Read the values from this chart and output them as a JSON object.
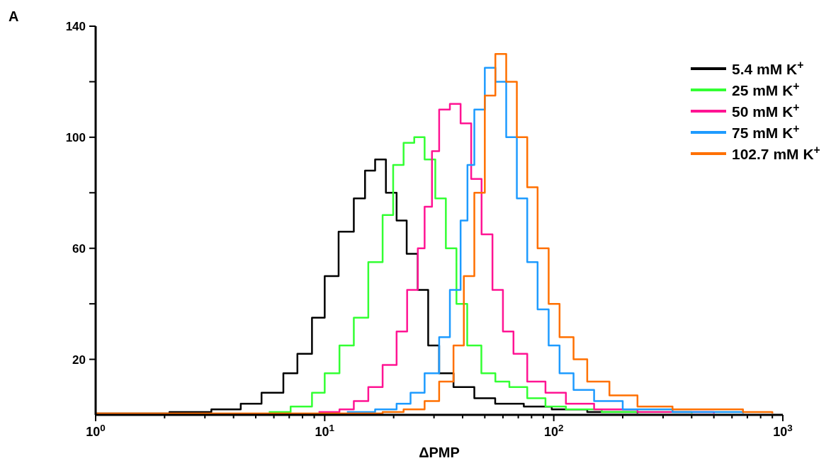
{
  "chart_data": {
    "type": "step",
    "title": "A",
    "xlabel": "ΔPMP",
    "log": "x",
    "legend": "top right",
    "grid": false,
    "xlim": [
      1,
      1000
    ],
    "xticks": [
      {
        "value": 1,
        "label": "10$^{0}$"
      },
      {
        "value": 2,
        "label": null
      },
      {
        "value": 3,
        "label": null
      },
      {
        "value": 4,
        "label": null
      },
      {
        "value": 5,
        "label": null
      },
      {
        "value": 6,
        "label": null
      },
      {
        "value": 7,
        "label": null
      },
      {
        "value": 8,
        "label": null
      },
      {
        "value": 9,
        "label": null
      },
      {
        "value": 10,
        "label": "10$^{1}$"
      },
      {
        "value": 20,
        "label": null
      },
      {
        "value": 30,
        "label": null
      },
      {
        "value": 40,
        "label": null
      },
      {
        "value": 50,
        "label": null
      },
      {
        "value": 60,
        "label": null
      },
      {
        "value": 70,
        "label": null
      },
      {
        "value": 80,
        "label": null
      },
      {
        "value": 90,
        "label": null
      },
      {
        "value": 100,
        "label": "10$^{2}$"
      },
      {
        "value": 200,
        "label": null
      },
      {
        "value": 300,
        "label": null
      },
      {
        "value": 400,
        "label": null
      },
      {
        "value": 500,
        "label": null
      },
      {
        "value": 600,
        "label": null
      },
      {
        "value": 700,
        "label": null
      },
      {
        "value": 800,
        "label": null
      },
      {
        "value": 900,
        "label": null
      },
      {
        "value": 1000,
        "label": "10$^{3}$"
      }
    ],
    "ylim": [
      0,
      140
    ],
    "yticks": [
      20,
      {
        "value": 40,
        "label": null
      },
      60,
      {
        "value": 80,
        "label": null
      },
      100,
      {
        "value": 120,
        "label": null
      },
      140
    ],
    "series": [
      {
        "name": "5.4 mM K$^{+}$",
        "color": "#000000",
        "x": [
          1,
          2.1,
          3.2,
          4.3,
          5.3,
          6.6,
          7.6,
          8.8,
          10,
          11.5,
          13.4,
          15,
          16.6,
          18.5,
          20.6,
          22.8,
          25.5,
          28.3,
          31.6,
          36.5,
          45,
          55.5,
          74,
          98,
          140,
          232
        ],
        "values": [
          0.5,
          1,
          2,
          4,
          8,
          15,
          22,
          35,
          50,
          66,
          78,
          88,
          92,
          80,
          70,
          58,
          45,
          25,
          15,
          10,
          6,
          4,
          3,
          2,
          1,
          0.5
        ]
      },
      {
        "name": "25 mM K$^{+}$",
        "color": "#33ff33",
        "x": [
          5.7,
          7.1,
          8.8,
          10,
          11.6,
          13.4,
          15.5,
          17.9,
          19.9,
          22.1,
          24.6,
          27.3,
          30.4,
          33.8,
          37.6,
          41.9,
          48.3,
          55.6,
          64,
          76.6,
          92,
          113,
          162,
          400
        ],
        "values": [
          1,
          3,
          8,
          15,
          25,
          35,
          55,
          72,
          90,
          98,
          100,
          92,
          78,
          60,
          40,
          25,
          15,
          12,
          10,
          6,
          3,
          2,
          1,
          0.5
        ]
      },
      {
        "name": "50 mM K$^{+}$",
        "color": "#ff1493",
        "x": [
          9.4,
          11.6,
          13.4,
          15.5,
          17.9,
          20.6,
          22.9,
          25.5,
          27.3,
          29.4,
          31.6,
          35.2,
          39.2,
          43.6,
          48.4,
          54,
          60,
          66.7,
          76.6,
          92,
          113,
          150,
          232,
          500
        ],
        "values": [
          1,
          2,
          5,
          10,
          18,
          30,
          45,
          60,
          75,
          95,
          110,
          112,
          105,
          85,
          65,
          45,
          30,
          22,
          12,
          8,
          4,
          2,
          1,
          0.5
        ]
      },
      {
        "name": "75 mM K$^{+}$",
        "color": "#1e9bff",
        "x": [
          12.5,
          16.6,
          20.6,
          23.7,
          27.3,
          31.6,
          35.2,
          39.2,
          42,
          45,
          50,
          55.6,
          62,
          69,
          76.6,
          85,
          95,
          106,
          122,
          150,
          200,
          330,
          670
        ],
        "values": [
          1,
          2,
          4,
          8,
          15,
          28,
          45,
          70,
          90,
          110,
          125,
          120,
          100,
          78,
          55,
          38,
          25,
          15,
          9,
          5,
          2,
          1,
          0.5
        ]
      },
      {
        "name": "102.7 mM K$^{+}$",
        "color": "#ff7000",
        "x": [
          1,
          17.9,
          22.1,
          27.3,
          31.6,
          36.5,
          40.5,
          45,
          50,
          55.6,
          62,
          69,
          76.6,
          85,
          95,
          106,
          122,
          140,
          175,
          232,
          330,
          670,
          900
        ],
        "values": [
          0.5,
          1,
          2,
          5,
          12,
          25,
          50,
          80,
          115,
          130,
          120,
          100,
          82,
          60,
          40,
          28,
          20,
          12,
          7,
          3,
          2,
          1,
          0.5
        ]
      }
    ]
  }
}
